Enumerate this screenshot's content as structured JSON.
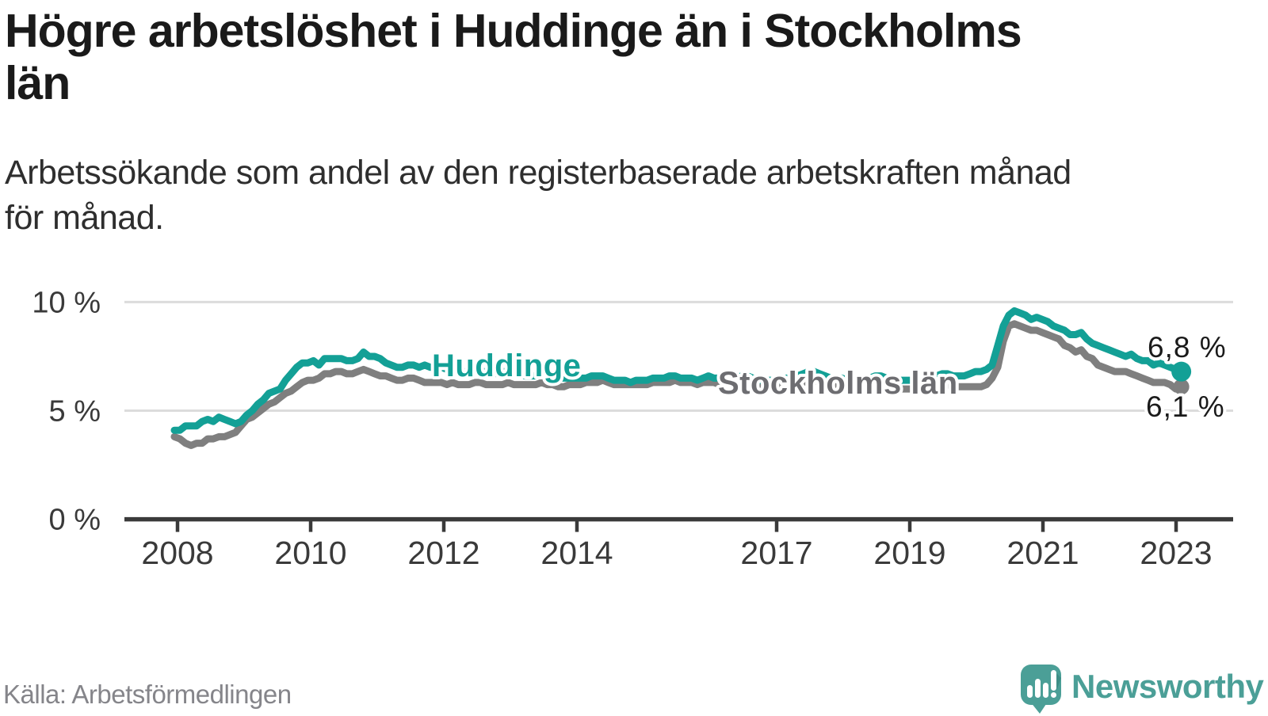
{
  "title_lines": [
    "Högre arbetslöshet i Huddinge än i Stockholms",
    "län"
  ],
  "subtitle_lines": [
    "Arbetssökande som andel av den registerbaserade arbetskraften månad",
    "för månad."
  ],
  "source": "Källa: Arbetsförmedlingen",
  "brand": {
    "name": "Newsworthy",
    "color": "#4b9f97"
  },
  "chart_data": {
    "type": "line",
    "title": "Högre arbetslöshet i Huddinge än i Stockholms län",
    "subtitle": "Arbetssökande som andel av den registerbaserade arbetskraften månad för månad.",
    "unit": "% av den registerbaserade arbetskraften",
    "frequency": "monthly",
    "x_start": "2008-01",
    "x_end": "2023-02",
    "x_axis": {
      "tick_years": [
        2008,
        2010,
        2012,
        2014,
        2017,
        2019,
        2021,
        2023
      ]
    },
    "y_axis": {
      "tick_values": [
        0,
        5,
        10
      ],
      "tick_labels": [
        "0 %",
        "5 %",
        "10 %"
      ],
      "ylim": [
        0,
        10.8
      ]
    },
    "grid": "horizontal",
    "colors": {
      "grid": "#dcdcdc",
      "axis": "#3a3a3a",
      "tick_text": "#3a3a3a",
      "end_label_text": "#1a1a1a"
    },
    "series": [
      {
        "name": "Huddinge",
        "color": "#13a096",
        "label_color": "#13a096",
        "end_label": "6,8 %",
        "last_value": 6.8,
        "end_dot": true,
        "values": [
          4.1,
          4.1,
          4.3,
          4.3,
          4.3,
          4.5,
          4.6,
          4.5,
          4.7,
          4.6,
          4.5,
          4.4,
          4.5,
          4.8,
          5.0,
          5.3,
          5.5,
          5.8,
          5.9,
          6.0,
          6.4,
          6.7,
          7.0,
          7.2,
          7.2,
          7.3,
          7.1,
          7.4,
          7.4,
          7.4,
          7.4,
          7.3,
          7.3,
          7.4,
          7.7,
          7.5,
          7.5,
          7.4,
          7.2,
          7.1,
          7.0,
          7.0,
          7.1,
          7.1,
          7.0,
          7.1,
          7.0,
          7.0,
          7.0,
          6.9,
          7.0,
          6.9,
          6.8,
          6.8,
          6.9,
          6.8,
          6.8,
          6.8,
          6.7,
          6.8,
          6.8,
          6.7,
          6.7,
          6.6,
          6.6,
          6.6,
          6.7,
          6.6,
          6.5,
          6.5,
          6.5,
          6.5,
          6.5,
          6.5,
          6.5,
          6.6,
          6.6,
          6.6,
          6.5,
          6.4,
          6.4,
          6.4,
          6.3,
          6.4,
          6.4,
          6.4,
          6.5,
          6.5,
          6.5,
          6.6,
          6.6,
          6.5,
          6.5,
          6.5,
          6.4,
          6.5,
          6.6,
          6.5,
          6.5,
          6.4,
          6.4,
          6.5,
          6.6,
          6.6,
          6.5,
          6.4,
          6.4,
          6.4,
          6.4,
          6.4,
          6.5,
          6.5,
          6.6,
          6.7,
          6.8,
          6.8,
          6.7,
          6.6,
          6.5,
          6.5,
          6.5,
          6.4,
          6.4,
          6.3,
          6.4,
          6.5,
          6.6,
          6.6,
          6.5,
          6.4,
          6.4,
          6.4,
          6.4,
          6.4,
          6.4,
          6.4,
          6.5,
          6.6,
          6.7,
          6.7,
          6.6,
          6.6,
          6.6,
          6.7,
          6.8,
          6.8,
          6.9,
          7.1,
          8.0,
          8.9,
          9.4,
          9.6,
          9.5,
          9.4,
          9.2,
          9.3,
          9.2,
          9.1,
          8.9,
          8.8,
          8.7,
          8.5,
          8.5,
          8.6,
          8.3,
          8.1,
          8.0,
          7.9,
          7.8,
          7.7,
          7.6,
          7.5,
          7.6,
          7.4,
          7.3,
          7.3,
          7.1,
          7.2,
          7.1,
          7.0,
          6.9,
          6.8
        ]
      },
      {
        "name": "Stockholms län",
        "color": "#7f7f7f",
        "label_color": "#6d6d71",
        "end_label": "6,1 %",
        "last_value": 6.1,
        "end_dot": true,
        "values": [
          3.8,
          3.7,
          3.5,
          3.4,
          3.5,
          3.5,
          3.7,
          3.7,
          3.8,
          3.8,
          3.9,
          4.0,
          4.3,
          4.6,
          4.7,
          4.9,
          5.1,
          5.3,
          5.4,
          5.6,
          5.8,
          5.9,
          6.1,
          6.3,
          6.4,
          6.4,
          6.5,
          6.7,
          6.7,
          6.8,
          6.8,
          6.7,
          6.7,
          6.8,
          6.9,
          6.8,
          6.7,
          6.6,
          6.6,
          6.5,
          6.4,
          6.4,
          6.5,
          6.5,
          6.4,
          6.3,
          6.3,
          6.3,
          6.3,
          6.2,
          6.3,
          6.2,
          6.2,
          6.2,
          6.3,
          6.3,
          6.2,
          6.2,
          6.2,
          6.2,
          6.3,
          6.2,
          6.2,
          6.2,
          6.2,
          6.2,
          6.3,
          6.2,
          6.2,
          6.1,
          6.1,
          6.2,
          6.2,
          6.2,
          6.3,
          6.3,
          6.3,
          6.4,
          6.3,
          6.2,
          6.2,
          6.2,
          6.2,
          6.2,
          6.2,
          6.2,
          6.3,
          6.3,
          6.3,
          6.3,
          6.4,
          6.3,
          6.3,
          6.3,
          6.2,
          6.3,
          6.3,
          6.3,
          6.2,
          6.2,
          6.2,
          6.3,
          6.3,
          6.3,
          6.2,
          6.2,
          6.1,
          6.1,
          6.1,
          6.1,
          6.1,
          6.1,
          6.2,
          6.3,
          6.4,
          6.4,
          6.3,
          6.2,
          6.1,
          6.1,
          6.1,
          6.0,
          6.0,
          5.9,
          6.0,
          6.1,
          6.2,
          6.2,
          6.1,
          6.0,
          6.0,
          6.0,
          6.0,
          6.0,
          6.0,
          6.0,
          6.0,
          6.1,
          6.2,
          6.2,
          6.1,
          6.1,
          6.1,
          6.1,
          6.1,
          6.1,
          6.2,
          6.5,
          7.0,
          8.2,
          8.9,
          9.0,
          8.9,
          8.8,
          8.7,
          8.7,
          8.6,
          8.5,
          8.4,
          8.3,
          8.0,
          7.9,
          7.7,
          7.8,
          7.5,
          7.4,
          7.1,
          7.0,
          6.9,
          6.8,
          6.8,
          6.8,
          6.7,
          6.6,
          6.5,
          6.4,
          6.3,
          6.3,
          6.3,
          6.2,
          6.0,
          6.1
        ]
      }
    ]
  }
}
